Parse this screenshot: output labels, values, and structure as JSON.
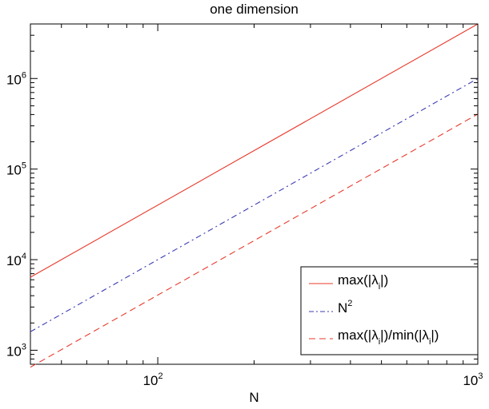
{
  "chart_data": {
    "type": "line",
    "title": "one dimension",
    "xlabel": "N",
    "ylabel": "",
    "xscale": "log",
    "yscale": "log",
    "xlim": [
      40,
      1000
    ],
    "ylim": [
      700,
      4000000
    ],
    "grid": false,
    "legend_position": "bottom-right",
    "x_ticks": [
      {
        "value": 100,
        "base": "10",
        "exp": "2"
      },
      {
        "value": 1000,
        "base": "10",
        "exp": "3"
      }
    ],
    "y_ticks": [
      {
        "value": 1000,
        "base": "10",
        "exp": "3"
      },
      {
        "value": 10000,
        "base": "10",
        "exp": "4"
      },
      {
        "value": 100000,
        "base": "10",
        "exp": "5"
      },
      {
        "value": 1000000,
        "base": "10",
        "exp": "6"
      }
    ],
    "series": [
      {
        "name": "max(|λi|)",
        "label_main": "max(|λ",
        "label_sub": "i",
        "label_tail": "|)",
        "color": "#e8392b",
        "style": "solid",
        "x": [
          40,
          1000
        ],
        "y": [
          6400,
          4000000
        ]
      },
      {
        "name": "N^2",
        "label_main": "N",
        "label_sup": "2",
        "color": "#3b3bb3",
        "style": "dashdot",
        "x": [
          40,
          1000
        ],
        "y": [
          1600,
          1000000
        ]
      },
      {
        "name": "max(|λi|)/min(|λi|)",
        "label_main": "max(|λ",
        "label_sub": "i",
        "label_mid": "|)/min(|λ",
        "label_sub2": "i",
        "label_tail": "|)",
        "color": "#e8392b",
        "style": "dashed",
        "x": [
          40,
          1000
        ],
        "y": [
          650,
          405000
        ]
      }
    ]
  }
}
